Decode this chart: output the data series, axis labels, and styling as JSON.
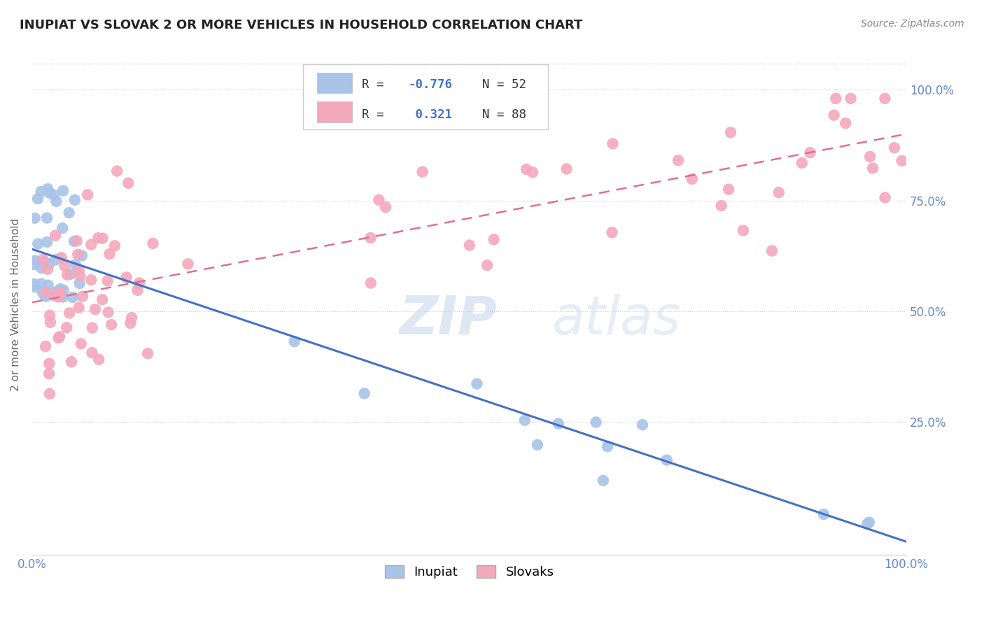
{
  "title": "INUPIAT VS SLOVAK 2 OR MORE VEHICLES IN HOUSEHOLD CORRELATION CHART",
  "source_text": "Source: ZipAtlas.com",
  "ylabel": "2 or more Vehicles in Household",
  "watermark_zip": "ZIP",
  "watermark_atlas": "atlas",
  "inupiat_R": -0.776,
  "inupiat_N": 52,
  "slovak_R": 0.321,
  "slovak_N": 88,
  "inupiat_color": "#a8c4e8",
  "slovak_color": "#f4a8bc",
  "inupiat_line_color": "#4472c4",
  "slovak_line_color": "#e07090",
  "background_color": "#ffffff",
  "grid_color": "#cccccc",
  "tick_color": "#6688cc",
  "title_color": "#222222",
  "ylabel_color": "#666666",
  "source_color": "#888888",
  "legend_R_color": "#4472c4",
  "xlim": [
    0.0,
    1.0
  ],
  "ylim": [
    -0.05,
    1.08
  ],
  "yticks": [
    0.25,
    0.5,
    0.75,
    1.0
  ],
  "yticklabels": [
    "25.0%",
    "50.0%",
    "75.0%",
    "100.0%"
  ],
  "xticks": [
    0.0,
    1.0
  ],
  "xticklabels": [
    "0.0%",
    "100.0%"
  ],
  "inupiat_line_intercept": 0.64,
  "inupiat_line_slope": -0.66,
  "slovak_line_intercept": 0.52,
  "slovak_line_slope": 0.38
}
